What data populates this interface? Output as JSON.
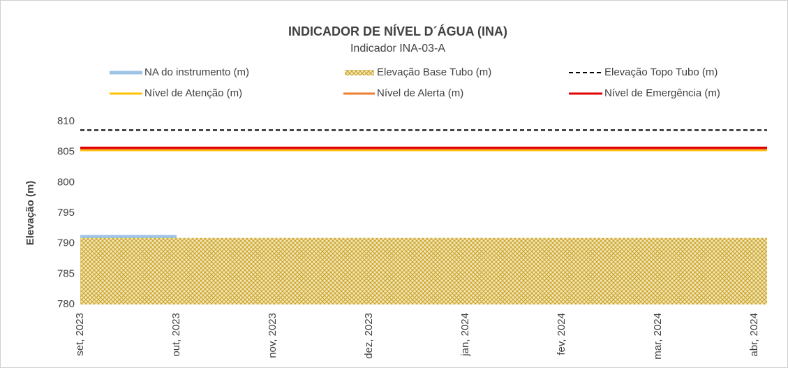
{
  "chart_data": {
    "type": "line",
    "title": "INDICADOR DE NÍVEL D´ÁGUA (INA)",
    "subtitle": "Indicador INA-03-A",
    "y_label": "Elevação (m)",
    "categories": [
      "set, 2023",
      "out, 2023",
      "nov, 2023",
      "dez, 2023",
      "jan, 2024",
      "fev, 2024",
      "mar, 2024",
      "abr, 2024"
    ],
    "ylim": [
      780,
      810
    ],
    "yticks": [
      780,
      785,
      790,
      795,
      800,
      805,
      810
    ],
    "grid": false,
    "legend": "top",
    "series": [
      {
        "name": "NA do instrumento (m)",
        "color": "#9dc3e6",
        "values": [
          791.1,
          791.1,
          null,
          null,
          null,
          null,
          null,
          null
        ]
      },
      {
        "name": "Elevação Base Tubo (m)",
        "color": "#c9a227",
        "type": "area",
        "values": [
          790.9,
          790.9,
          790.9,
          790.9,
          790.9,
          790.9,
          790.9,
          790.9
        ]
      },
      {
        "name": "Elevação Topo Tubo (m)",
        "color": "#000000",
        "dashed": true,
        "values": [
          808.6,
          808.6,
          808.6,
          808.6,
          808.6,
          808.6,
          808.6,
          808.6
        ]
      },
      {
        "name": "Nível de Atenção (m)",
        "color": "#ffc000",
        "values": [
          805.3,
          805.3,
          805.3,
          805.3,
          805.3,
          805.3,
          805.3,
          805.3
        ]
      },
      {
        "name": "Nível de Alerta (m)",
        "color": "#ed7d31",
        "values": [
          805.5,
          805.5,
          805.5,
          805.5,
          805.5,
          805.5,
          805.5,
          805.5
        ]
      },
      {
        "name": "Nível de Emergência (m)",
        "color": "#e00000",
        "values": [
          805.7,
          805.7,
          805.7,
          805.7,
          805.7,
          805.7,
          805.7,
          805.7
        ]
      }
    ]
  }
}
